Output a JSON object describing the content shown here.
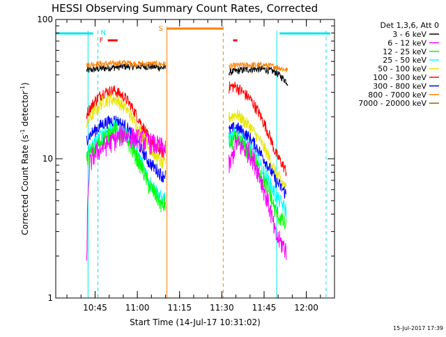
{
  "chart_data": {
    "type": "line",
    "title": "HESSI Observing Summary Count Rates, Corrected",
    "xlabel": "Start Time (14-Jul-17 10:31:02)",
    "ylabel": "Corrected Count Rate (s",
    "ylabel_sup1": "-1",
    "ylabel_mid": " detector",
    "ylabel_sup2": "-1",
    "ylabel_end": ")",
    "y_scale": "log",
    "ylim": [
      1,
      100
    ],
    "xlim": [
      "10:31:02",
      "12:10:00"
    ],
    "x_ticks": [
      "10:45",
      "11:00",
      "11:15",
      "11:30",
      "11:45",
      "12:00"
    ],
    "y_ticks": [
      "1",
      "10",
      "100"
    ],
    "legend_title": "Det 1,3,6, Att 0",
    "legend_position": "right",
    "footer_timestamp": "15-Jul-2017 17:39",
    "colors": {
      "3-6": "#000000",
      "6-12": "#ff00ff",
      "12-25": "#00ff00",
      "25-50": "#00ffff",
      "50-100": "#e6e600",
      "100-300": "#ff0000",
      "300-800": "#0000ff",
      "800-7000": "#ff8000",
      "7000-20000": "#996600",
      "cyan_marker": "#00e5ee"
    },
    "series": [
      {
        "name": "3 - 6 keV",
        "key": "3-6",
        "x": [
          "10:42:00",
          "10:45:00",
          "10:50:00",
          "10:55:00",
          "11:00:00",
          "11:05:00",
          "11:09:00",
          "11:33:00",
          "11:36:00",
          "11:40:00",
          "11:45:00",
          "11:49:00",
          "11:53:30"
        ],
        "y": [
          43,
          44,
          45,
          46,
          46,
          46,
          45,
          42,
          43,
          44,
          44,
          42,
          35
        ]
      },
      {
        "name": "6 - 12 keV",
        "key": "6-12",
        "x": [
          "10:42:00",
          "10:43:00",
          "10:45:00",
          "10:50:00",
          "10:55:00",
          "11:00:00",
          "11:05:00",
          "11:09:00",
          "11:33:00",
          "11:35:00",
          "11:40:00",
          "11:45:00",
          "11:49:00",
          "11:53:00"
        ],
        "y": [
          1.7,
          9,
          11,
          13,
          15,
          14,
          13,
          12,
          9,
          13,
          11,
          6,
          2.8,
          2.2
        ]
      },
      {
        "name": "12 - 25 keV",
        "key": "12-25",
        "x": [
          "10:42:00",
          "10:45:00",
          "10:48:00",
          "10:52:00",
          "10:56:00",
          "11:00:00",
          "11:04:00",
          "11:09:00",
          "11:33:00",
          "11:35:00",
          "11:40:00",
          "11:45:00",
          "11:49:00",
          "11:53:00"
        ],
        "y": [
          10,
          12,
          14,
          16,
          14,
          10,
          6.5,
          4.5,
          13,
          14,
          11,
          7,
          4.2,
          3.2
        ]
      },
      {
        "name": "25 - 50 keV",
        "key": "25-50",
        "x": [
          "10:42:00",
          "10:45:00",
          "10:48:00",
          "10:52:00",
          "10:56:00",
          "11:00:00",
          "11:04:00",
          "11:09:00",
          "11:33:00",
          "11:35:00",
          "11:40:00",
          "11:45:00",
          "11:49:00",
          "11:53:00"
        ],
        "y": [
          11,
          13,
          15.5,
          17,
          15,
          11,
          7,
          5,
          14,
          15,
          12,
          8,
          5.5,
          4.2
        ]
      },
      {
        "name": "50 - 100 keV",
        "key": "50-100",
        "x": [
          "10:42:00",
          "10:45:00",
          "10:48:00",
          "10:52:00",
          "10:56:00",
          "11:00:00",
          "11:04:00",
          "11:09:00",
          "11:33:00",
          "11:35:00",
          "11:40:00",
          "11:45:00",
          "11:49:00",
          "11:53:00"
        ],
        "y": [
          18,
          22,
          26,
          27,
          23,
          17,
          12,
          9,
          20,
          21,
          17,
          12,
          8,
          6
        ]
      },
      {
        "name": "100 - 300 keV",
        "key": "100-300",
        "x": [
          "10:42:00",
          "10:45:00",
          "10:48:00",
          "10:52:00",
          "10:56:00",
          "11:00:00",
          "11:04:00",
          "11:09:00",
          "11:33:00",
          "11:35:00",
          "11:40:00",
          "11:45:00",
          "11:49:00",
          "11:53:00"
        ],
        "y": [
          21,
          26,
          30,
          31,
          27,
          20,
          14,
          11,
          33,
          33,
          27,
          18,
          11,
          8
        ]
      },
      {
        "name": "300 - 800 keV",
        "key": "300-800",
        "x": [
          "10:42:00",
          "10:45:00",
          "10:48:00",
          "10:52:00",
          "10:56:00",
          "11:00:00",
          "11:04:00",
          "11:09:00",
          "11:33:00",
          "11:35:00",
          "11:40:00",
          "11:45:00",
          "11:49:00",
          "11:53:00"
        ],
        "y": [
          14,
          16,
          18,
          19,
          17,
          13,
          9.5,
          7.5,
          16,
          17,
          14,
          10,
          7,
          5.5
        ]
      },
      {
        "name": "800 - 7000 keV",
        "key": "800-7000",
        "x": [
          "10:42:00",
          "10:45:00",
          "10:50:00",
          "10:55:00",
          "11:00:00",
          "11:05:00",
          "11:09:00",
          "11:33:00",
          "11:36:00",
          "11:40:00",
          "11:45:00",
          "11:49:00",
          "11:53:30"
        ],
        "y": [
          47,
          48,
          48,
          49,
          48,
          48,
          48,
          46,
          47,
          47,
          47,
          46,
          43
        ]
      },
      {
        "name": "7000 - 20000 keV",
        "key": "7000-20000",
        "x": [],
        "y": []
      }
    ],
    "markers": {
      "N_label": "N",
      "S_label": "S",
      "F_label": "F",
      "night_segments": [
        [
          "10:31:02",
          "10:44:20"
        ],
        [
          "11:50:30",
          "12:08:30"
        ]
      ],
      "saa_segment": [
        "11:10:30",
        "11:30:30"
      ],
      "flare_segments": [
        [
          "10:49:30",
          "10:53:00"
        ],
        [
          "11:34:00",
          "11:35:30"
        ]
      ],
      "cyan_solid_lines": [
        "10:42:30",
        "11:49:30"
      ],
      "cyan_dashed_lines": [
        "10:46:00",
        "12:07:00"
      ],
      "orange_solid_line": "11:10:30",
      "orange_dashed_line": "11:30:30"
    }
  }
}
